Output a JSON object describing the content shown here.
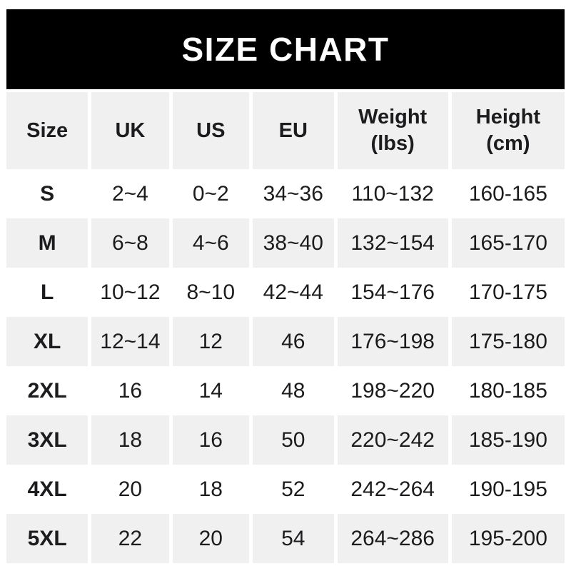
{
  "colors": {
    "banner_bg": "#000000",
    "banner_text": "#ffffff",
    "stripe_bg": "#f0f0f0",
    "page_bg": "#ffffff",
    "text_color": "#1c1c1e"
  },
  "banner": {
    "title": "SIZE CHART"
  },
  "chart_data": {
    "type": "table",
    "title": "SIZE CHART",
    "columns": [
      {
        "key": "size",
        "label": "Size"
      },
      {
        "key": "uk",
        "label": "UK"
      },
      {
        "key": "us",
        "label": "US"
      },
      {
        "key": "eu",
        "label": "EU"
      },
      {
        "key": "weight_lbs",
        "label": "Weight",
        "sub": "(lbs)"
      },
      {
        "key": "height_cm",
        "label": "Height",
        "sub": "(cm)"
      }
    ],
    "rows": [
      [
        "S",
        "2~4",
        "0~2",
        "34~36",
        "110~132",
        "160-165"
      ],
      [
        "M",
        "6~8",
        "4~6",
        "38~40",
        "132~154",
        "165-170"
      ],
      [
        "L",
        "10~12",
        "8~10",
        "42~44",
        "154~176",
        "170-175"
      ],
      [
        "XL",
        "12~14",
        "12",
        "46",
        "176~198",
        "175-180"
      ],
      [
        "2XL",
        "16",
        "14",
        "48",
        "198~220",
        "180-185"
      ],
      [
        "3XL",
        "18",
        "16",
        "50",
        "220~242",
        "185-190"
      ],
      [
        "4XL",
        "20",
        "18",
        "52",
        "242~264",
        "190-195"
      ],
      [
        "5XL",
        "22",
        "20",
        "54",
        "264~286",
        "195-200"
      ]
    ]
  }
}
